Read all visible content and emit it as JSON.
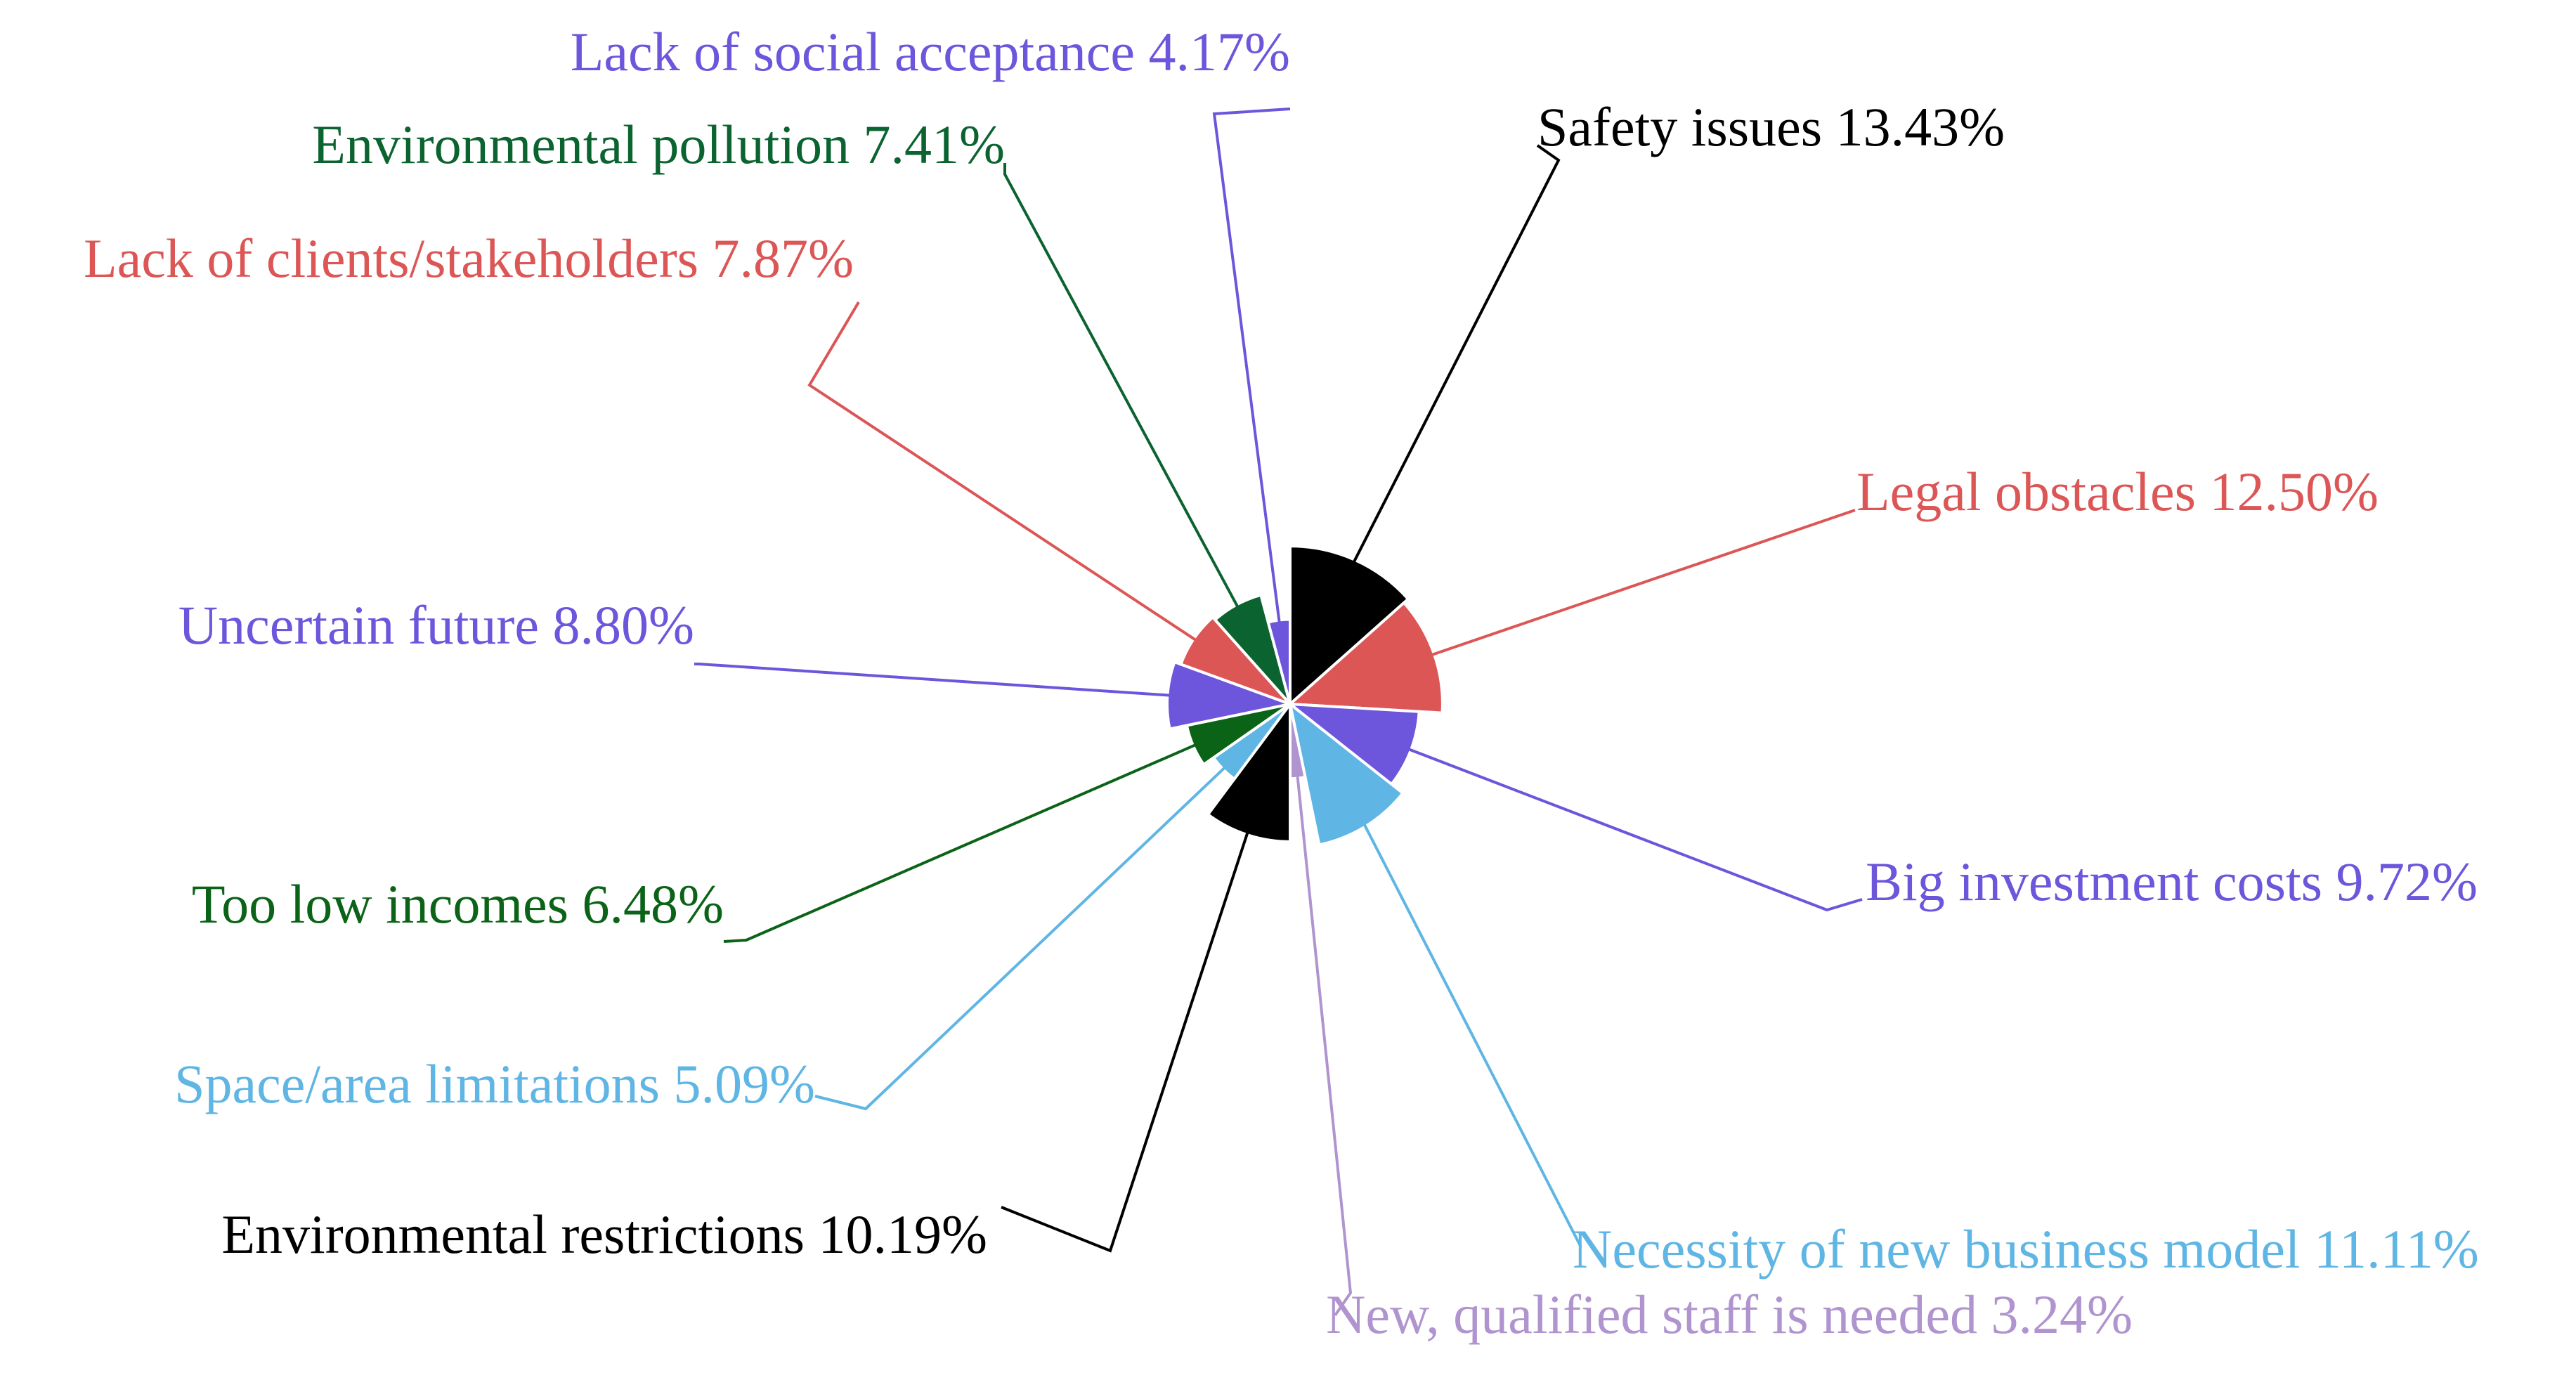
{
  "chart_data": {
    "type": "pie",
    "variant": "rose",
    "start_angle_deg": 0,
    "direction": "clockwise",
    "label_format": "{label} {value}%",
    "slices": [
      {
        "label": "Safety issues",
        "value": 13.43,
        "value_text": "13.43",
        "color": "#000000"
      },
      {
        "label": "Legal obstacles",
        "value": 12.5,
        "value_text": "12.50",
        "color": "#dc5656"
      },
      {
        "label": "Big investment costs",
        "value": 9.72,
        "value_text": "9.72",
        "color": "#6d55dc"
      },
      {
        "label": "Necessity of new business model",
        "value": 11.11,
        "value_text": "11.11",
        "color": "#5fb5e3"
      },
      {
        "label": "New, qualified staff is needed",
        "value": 3.24,
        "value_text": "3.24",
        "color": "#b094cf"
      },
      {
        "label": "Environmental restrictions",
        "value": 10.19,
        "value_text": "10.19",
        "color": "#000000"
      },
      {
        "label": "Space/area limitations",
        "value": 5.09,
        "value_text": "5.09",
        "color": "#5fb5e3"
      },
      {
        "label": "Too low incomes",
        "value": 6.48,
        "value_text": "6.48",
        "color": "#0b6318"
      },
      {
        "label": "Uncertain future",
        "value": 8.8,
        "value_text": "8.80",
        "color": "#6d55dc"
      },
      {
        "label": "Lack of clients/stakeholders",
        "value": 7.87,
        "value_text": "7.87",
        "color": "#dc5656"
      },
      {
        "label": "Environmental pollution",
        "value": 7.41,
        "value_text": "7.41",
        "color": "#0b6330"
      },
      {
        "label": "Lack of social acceptance",
        "value": 4.17,
        "value_text": "4.17",
        "color": "#6d55dc"
      }
    ]
  }
}
